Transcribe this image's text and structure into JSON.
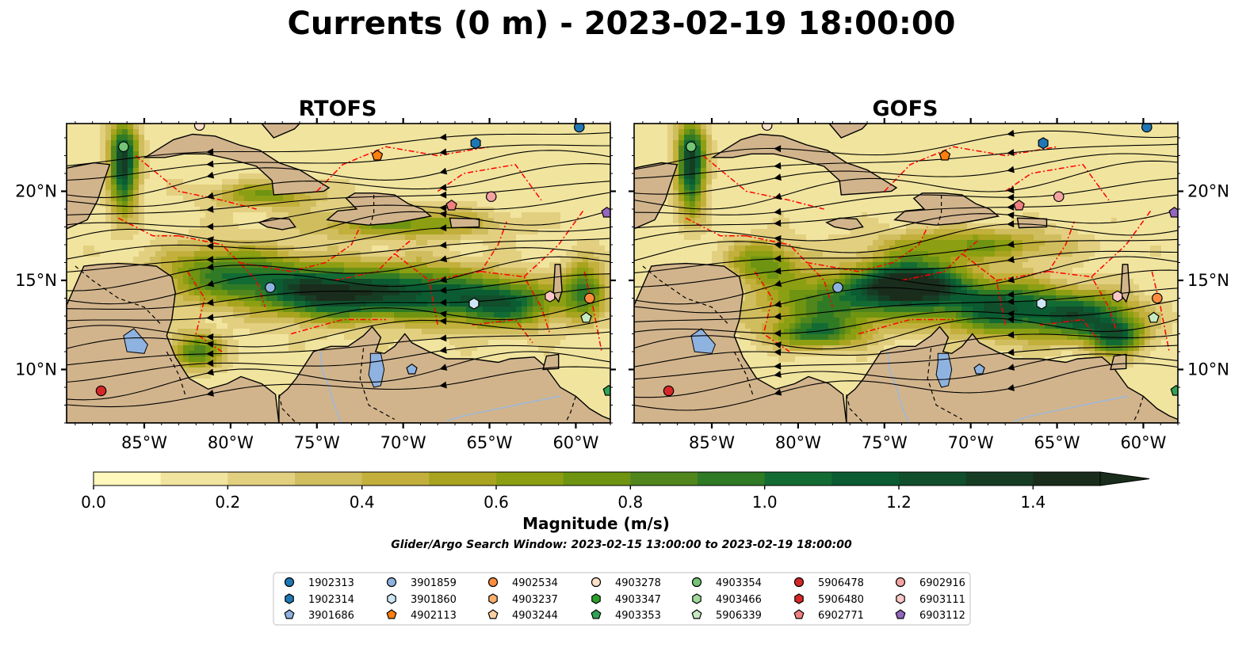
{
  "figure": {
    "title": "Currents (0 m) - 2023-02-19 18:00:00",
    "search_window_note": "Glider/Argo Search Window: 2023-02-15 13:00:00 to 2023-02-19 18:00:00"
  },
  "colors": {
    "land": "#d2b48c",
    "boundary_line": "#ff0000",
    "streamline": "#000000",
    "lake": "#8fb3e0",
    "colormap": [
      "#fff7bc",
      "#f1e49e",
      "#e2d080",
      "#d0bd5e",
      "#c3b03c",
      "#a8a41f",
      "#8c9f12",
      "#6e9412",
      "#50861c",
      "#2f7a25",
      "#136b34",
      "#0b5c32",
      "#114e2c",
      "#163d24",
      "#1a2d1c"
    ]
  },
  "chart_data": [
    {
      "type": "heatmap",
      "subtype": "map-streamlines",
      "title": "RTOFS",
      "variable": "surface current magnitude (m/s)",
      "xlim": [
        -89.5,
        -58.0
      ],
      "ylim": [
        7.0,
        23.8
      ],
      "xticks": [
        -85,
        -80,
        -75,
        -70,
        -65,
        -60
      ],
      "xtick_labels": [
        "85°W",
        "80°W",
        "75°W",
        "70°W",
        "65°W",
        "60°W"
      ],
      "yticks": [
        10,
        15,
        20
      ],
      "ytick_labels": [
        "10°N",
        "15°N",
        "20°N"
      ],
      "grid": false,
      "features": [
        "streamlines",
        "EEZ boundaries",
        "bathymetry contours",
        "land",
        "lakes"
      ],
      "jets": [
        {
          "lon": -80,
          "lat": 15.3,
          "mag": 0.8,
          "sx": 4.0,
          "sy": 1.6
        },
        {
          "lon": -74.5,
          "lat": 14.3,
          "mag": 1.15,
          "sx": 3.5,
          "sy": 1.4
        },
        {
          "lon": -69,
          "lat": 14.3,
          "mag": 0.95,
          "sx": 4.0,
          "sy": 1.5
        },
        {
          "lon": -64,
          "lat": 13.7,
          "mag": 0.9,
          "sx": 3.0,
          "sy": 1.3
        },
        {
          "lon": -86.2,
          "lat": 21.5,
          "mag": 1.2,
          "sx": 0.8,
          "sy": 2.5
        },
        {
          "lon": -88.5,
          "lat": 9.5,
          "mag": 1.1,
          "sx": 2.0,
          "sy": 1.8
        },
        {
          "lon": -59.5,
          "lat": 14.5,
          "mag": 0.8,
          "sx": 1.2,
          "sy": 1.5
        },
        {
          "lon": -70,
          "lat": 18.2,
          "mag": 0.6,
          "sx": 5.0,
          "sy": 0.8
        },
        {
          "lon": -78,
          "lat": 19.8,
          "mag": 0.55,
          "sx": 3.0,
          "sy": 0.7
        },
        {
          "lon": -82,
          "lat": 11.0,
          "mag": 0.7,
          "sx": 1.5,
          "sy": 1.0
        }
      ],
      "floats": [
        {
          "id": "1902313",
          "lon": -59.8,
          "lat": 23.6
        },
        {
          "id": "4903354",
          "lon": -86.2,
          "lat": 22.5
        },
        {
          "id": "4903278",
          "lon": -81.8,
          "lat": 23.7
        },
        {
          "id": "1902314",
          "lon": -65.8,
          "lat": 22.7
        },
        {
          "id": "4902113",
          "lon": -71.5,
          "lat": 22.0
        },
        {
          "id": "6902916",
          "lon": -64.9,
          "lat": 19.7
        },
        {
          "id": "6902771",
          "lon": -67.2,
          "lat": 19.2
        },
        {
          "id": "6903112",
          "lon": -58.2,
          "lat": 18.8
        },
        {
          "id": "3901859",
          "lon": -77.7,
          "lat": 14.6
        },
        {
          "id": "3901860",
          "lon": -65.9,
          "lat": 13.7
        },
        {
          "id": "6903111",
          "lon": -61.5,
          "lat": 14.1
        },
        {
          "id": "4902534",
          "lon": -59.2,
          "lat": 14.0
        },
        {
          "id": "5906339",
          "lon": -59.4,
          "lat": 12.9
        },
        {
          "id": "3901686",
          "lon": -69.5,
          "lat": 10.0
        },
        {
          "id": "5906478",
          "lon": -87.5,
          "lat": 8.8
        },
        {
          "id": "4903353",
          "lon": -58.1,
          "lat": 8.8
        }
      ]
    },
    {
      "type": "heatmap",
      "subtype": "map-streamlines",
      "title": "GOFS",
      "variable": "surface current magnitude (m/s)",
      "xlim": [
        -89.5,
        -58.0
      ],
      "ylim": [
        7.0,
        23.8
      ],
      "xticks": [
        -85,
        -80,
        -75,
        -70,
        -65,
        -60
      ],
      "xtick_labels": [
        "85°W",
        "80°W",
        "75°W",
        "70°W",
        "65°W",
        "60°W"
      ],
      "yticks": [
        10,
        15,
        20
      ],
      "ytick_labels": [
        "10°N",
        "15°N",
        "20°N"
      ],
      "grid": false,
      "features": [
        "streamlines",
        "EEZ boundaries",
        "bathymetry contours",
        "land",
        "lakes"
      ],
      "jets": [
        {
          "lon": -78,
          "lat": 13.8,
          "mag": 0.75,
          "sx": 4.0,
          "sy": 1.6
        },
        {
          "lon": -73.5,
          "lat": 14.8,
          "mag": 1.45,
          "sx": 2.8,
          "sy": 1.3
        },
        {
          "lon": -68.5,
          "lat": 13.5,
          "mag": 1.0,
          "sx": 3.5,
          "sy": 1.5
        },
        {
          "lon": -63.5,
          "lat": 13.0,
          "mag": 0.95,
          "sx": 3.0,
          "sy": 1.3
        },
        {
          "lon": -86.2,
          "lat": 21.5,
          "mag": 1.2,
          "sx": 0.8,
          "sy": 2.5
        },
        {
          "lon": -88.3,
          "lat": 9.3,
          "mag": 1.0,
          "sx": 2.0,
          "sy": 1.8
        },
        {
          "lon": -61.5,
          "lat": 11.8,
          "mag": 0.8,
          "sx": 1.5,
          "sy": 1.0
        },
        {
          "lon": -70,
          "lat": 17.0,
          "mag": 0.55,
          "sx": 5.0,
          "sy": 0.9
        },
        {
          "lon": -82,
          "lat": 16.0,
          "mag": 0.6,
          "sx": 2.0,
          "sy": 1.2
        },
        {
          "lon": -79,
          "lat": 12.0,
          "mag": 0.7,
          "sx": 2.5,
          "sy": 0.8
        }
      ],
      "floats": [
        {
          "id": "1902313",
          "lon": -59.8,
          "lat": 23.6
        },
        {
          "id": "4903354",
          "lon": -86.2,
          "lat": 22.5
        },
        {
          "id": "4903278",
          "lon": -81.8,
          "lat": 23.7
        },
        {
          "id": "1902314",
          "lon": -65.8,
          "lat": 22.7
        },
        {
          "id": "4902113",
          "lon": -71.5,
          "lat": 22.0
        },
        {
          "id": "6902916",
          "lon": -64.9,
          "lat": 19.7
        },
        {
          "id": "6902771",
          "lon": -67.2,
          "lat": 19.2
        },
        {
          "id": "6903112",
          "lon": -58.2,
          "lat": 18.8
        },
        {
          "id": "3901859",
          "lon": -77.7,
          "lat": 14.6
        },
        {
          "id": "3901860",
          "lon": -65.9,
          "lat": 13.7
        },
        {
          "id": "6903111",
          "lon": -61.5,
          "lat": 14.1
        },
        {
          "id": "4902534",
          "lon": -59.2,
          "lat": 14.0
        },
        {
          "id": "5906339",
          "lon": -59.4,
          "lat": 12.9
        },
        {
          "id": "3901686",
          "lon": -69.5,
          "lat": 10.0
        },
        {
          "id": "5906478",
          "lon": -87.5,
          "lat": 8.8
        },
        {
          "id": "4903353",
          "lon": -58.1,
          "lat": 8.8
        }
      ]
    },
    {
      "type": "colorbar",
      "label": "Magnitude (m/s)",
      "range": [
        0.0,
        1.5
      ],
      "step": 0.1,
      "ticks": [
        0.0,
        0.2,
        0.4,
        0.6,
        0.8,
        1.0,
        1.2,
        1.4
      ],
      "tick_labels": [
        "0.0",
        "0.2",
        "0.4",
        "0.6",
        "0.8",
        "1.0",
        "1.2",
        "1.4"
      ],
      "extend": "max"
    }
  ],
  "legend": {
    "entries": [
      {
        "id": "1902313",
        "marker": "circle",
        "color": "#1f77b4"
      },
      {
        "id": "1902314",
        "marker": "hexagon",
        "color": "#1f77b4"
      },
      {
        "id": "3901686",
        "marker": "pentagon",
        "color": "#8fb3e0"
      },
      {
        "id": "3901859",
        "marker": "circle",
        "color": "#8fb3e0"
      },
      {
        "id": "3901860",
        "marker": "hexagon",
        "color": "#cfe6f5"
      },
      {
        "id": "4902113",
        "marker": "pentagon",
        "color": "#ff7f0e"
      },
      {
        "id": "4902534",
        "marker": "circle",
        "color": "#fd8d3c"
      },
      {
        "id": "4903237",
        "marker": "hexagon",
        "color": "#fdae6b"
      },
      {
        "id": "4903244",
        "marker": "pentagon",
        "color": "#fdd0a2"
      },
      {
        "id": "4903278",
        "marker": "circle",
        "color": "#fde0c8"
      },
      {
        "id": "4903347",
        "marker": "hexagon",
        "color": "#2ca02c"
      },
      {
        "id": "4903353",
        "marker": "pentagon",
        "color": "#31a354"
      },
      {
        "id": "4903354",
        "marker": "circle",
        "color": "#74c476"
      },
      {
        "id": "4903466",
        "marker": "hexagon",
        "color": "#a1d99b"
      },
      {
        "id": "5906339",
        "marker": "pentagon",
        "color": "#c7e9c0"
      },
      {
        "id": "5906478",
        "marker": "circle",
        "color": "#d62728"
      },
      {
        "id": "5906480",
        "marker": "hexagon",
        "color": "#d62728"
      },
      {
        "id": "6902771",
        "marker": "pentagon",
        "color": "#f08080"
      },
      {
        "id": "6902916",
        "marker": "circle",
        "color": "#f4a3a3"
      },
      {
        "id": "6903111",
        "marker": "hexagon",
        "color": "#fbc7c7"
      },
      {
        "id": "6903112",
        "marker": "pentagon",
        "color": "#9467bd"
      }
    ]
  }
}
